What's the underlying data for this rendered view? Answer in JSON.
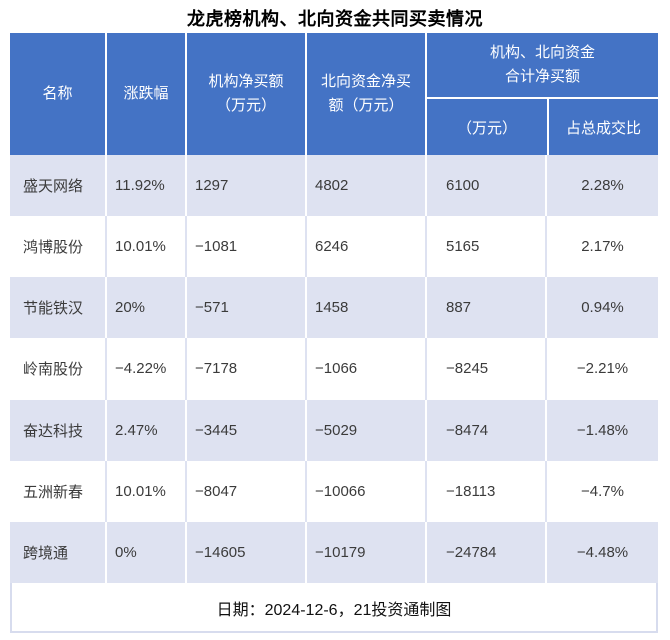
{
  "title": "龙虎榜机构、北向资金共同买卖情况",
  "colors": {
    "header_bg": "#4473C5",
    "header_text": "#FFFFFF",
    "row_alt_bg": "#DEE2F1",
    "row_bg": "#FFFFFF",
    "table_border": "#D7DCEE",
    "data_text": "#3B3B3B",
    "title_text": "#000000"
  },
  "table": {
    "header": {
      "name": "名称",
      "change": "涨跌幅",
      "inst_line1": "机构净买额",
      "inst_line2": "（万元）",
      "north_line1": "北向资金净买",
      "north_line2": "额（万元）",
      "group_line1": "机构、北向资金",
      "group_line2": "合计净买额",
      "amount": "（万元）",
      "ratio": "占总成交比"
    },
    "rows": [
      {
        "name": "盛天网络",
        "change": "11.92%",
        "inst": "1297",
        "north": "4802",
        "total": "6100",
        "ratio": "2.28%"
      },
      {
        "name": "鸿博股份",
        "change": "10.01%",
        "inst": "−1081",
        "north": "6246",
        "total": "5165",
        "ratio": "2.17%"
      },
      {
        "name": "节能铁汉",
        "change": "20%",
        "inst": "−571",
        "north": "1458",
        "total": "887",
        "ratio": "0.94%"
      },
      {
        "name": "岭南股份",
        "change": "−4.22%",
        "inst": "−7178",
        "north": "−1066",
        "total": "−8245",
        "ratio": "−2.21%"
      },
      {
        "name": "奋达科技",
        "change": "2.47%",
        "inst": "−3445",
        "north": "−5029",
        "total": "−8474",
        "ratio": "−1.48%"
      },
      {
        "name": "五洲新春",
        "change": "10.01%",
        "inst": "−8047",
        "north": "−10066",
        "total": "−18113",
        "ratio": "−4.7%"
      },
      {
        "name": "跨境通",
        "change": "0%",
        "inst": "−14605",
        "north": "−10179",
        "total": "−24784",
        "ratio": "−4.48%"
      }
    ],
    "footer": "日期：2024-12-6，21投资通制图"
  },
  "chart_data": {
    "type": "table",
    "title": "龙虎榜机构、北向资金共同买卖情况",
    "columns": [
      "名称",
      "涨跌幅",
      "机构净买额（万元）",
      "北向资金净买额（万元）",
      "机构、北向资金合计净买额（万元）",
      "机构、北向资金合计净买额占总成交比"
    ],
    "rows": [
      [
        "盛天网络",
        "11.92%",
        1297,
        4802,
        6100,
        "2.28%"
      ],
      [
        "鸿博股份",
        "10.01%",
        -1081,
        6246,
        5165,
        "2.17%"
      ],
      [
        "节能铁汉",
        "20%",
        -571,
        1458,
        887,
        "0.94%"
      ],
      [
        "岭南股份",
        "-4.22%",
        -7178,
        -1066,
        -8245,
        "-2.21%"
      ],
      [
        "奋达科技",
        "2.47%",
        -3445,
        -5029,
        -8474,
        "-1.48%"
      ],
      [
        "五洲新春",
        "10.01%",
        -8047,
        -10066,
        -18113,
        "-4.7%"
      ],
      [
        "跨境通",
        "0%",
        -14605,
        -10179,
        -24784,
        "-4.48%"
      ]
    ],
    "note": "日期：2024-12-6，21投资通制图"
  }
}
